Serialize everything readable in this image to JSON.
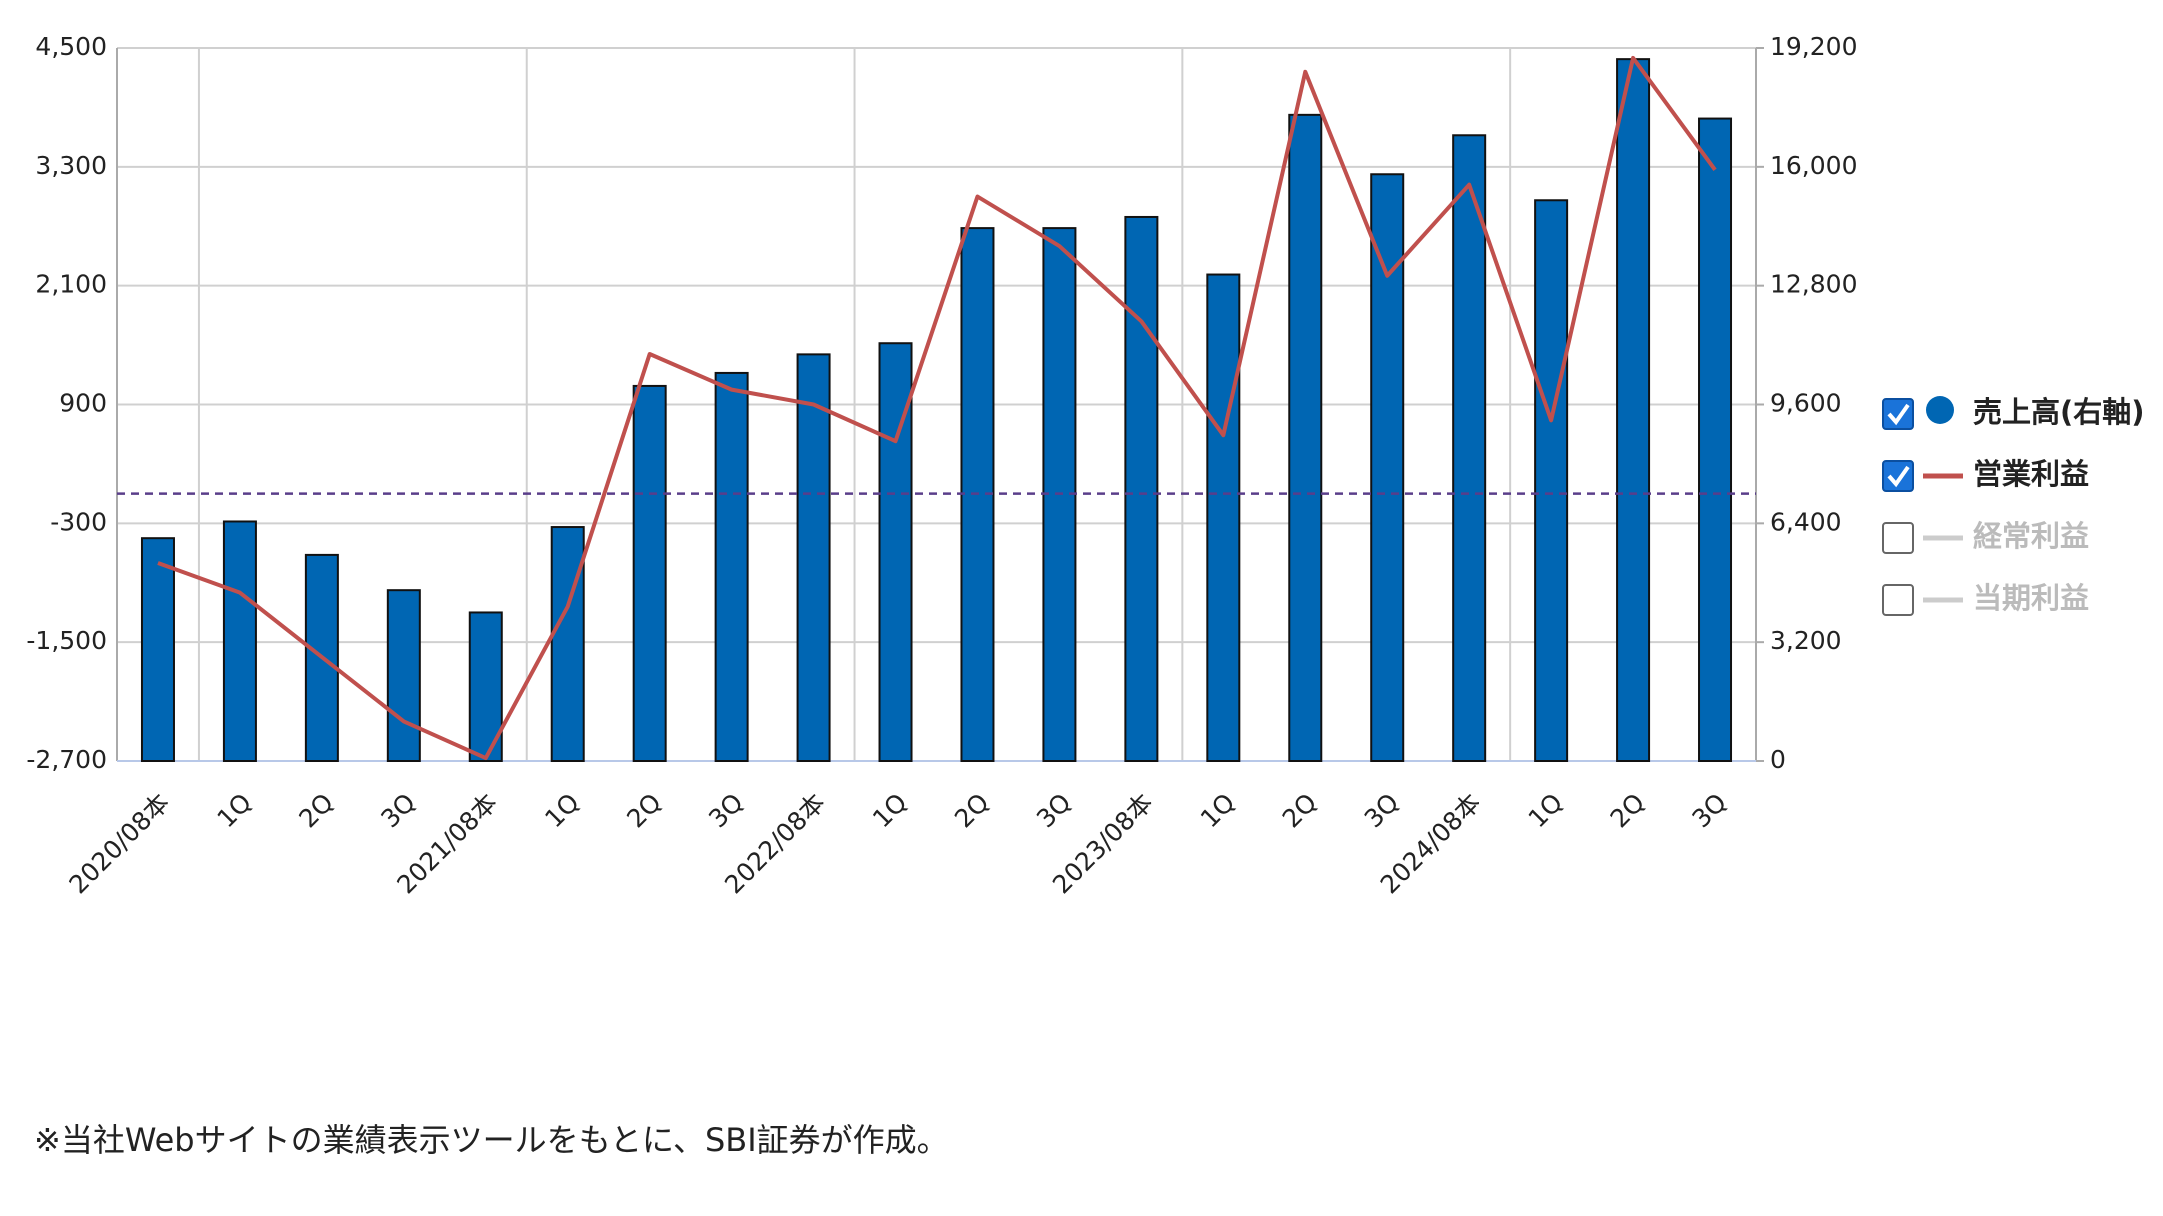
{
  "chart_data": {
    "type": "bar_line",
    "categories": [
      "2020/08本",
      "1Q",
      "2Q",
      "3Q",
      "2021/08本",
      "1Q",
      "2Q",
      "3Q",
      "2022/08本",
      "1Q",
      "2Q",
      "3Q",
      "2023/08本",
      "1Q",
      "2Q",
      "3Q",
      "2024/08本",
      "1Q",
      "2Q",
      "3Q"
    ],
    "series": [
      {
        "name": "売上高(右軸)",
        "type": "bar",
        "axis": "y2",
        "color": "#0066b3",
        "values": [
          6000,
          6450,
          5550,
          4600,
          4000,
          6300,
          10100,
          10450,
          10950,
          11250,
          14350,
          14350,
          14650,
          13100,
          17400,
          15800,
          16850,
          15100,
          18900,
          17300
        ]
      },
      {
        "name": "営業利益",
        "type": "line",
        "color": "#c0504d",
        "values": [
          -700,
          -1000,
          -1650,
          -2300,
          -2670,
          -1140,
          1410,
          1050,
          900,
          530,
          3000,
          2500,
          1740,
          590,
          4260,
          2200,
          3120,
          740,
          4400,
          3270
        ]
      }
    ],
    "hidden_series": [
      "経常利益",
      "当期利益"
    ],
    "ylim": [
      -2700,
      4500
    ],
    "yticks": [
      {
        "value": 4500,
        "label": "4,500"
      },
      {
        "value": 3300,
        "label": "3,300"
      },
      {
        "value": 2100,
        "label": "2,100"
      },
      900,
      -300,
      {
        "value": -1500,
        "label": "-1,500"
      },
      {
        "value": -2700,
        "label": "-2,700"
      }
    ],
    "y2lim": [
      0,
      19200
    ],
    "y2ticks": [
      {
        "value": 19200,
        "label": "19,200"
      },
      {
        "value": 16000,
        "label": "16,000"
      },
      {
        "value": 12800,
        "label": "12,800"
      },
      {
        "value": 9600,
        "label": "9,600"
      },
      {
        "value": 6400,
        "label": "6,400"
      },
      {
        "value": 3200,
        "label": "3,200"
      },
      0
    ],
    "ref_line": 0,
    "grid": true
  },
  "footnote": "※当社Webサイトの業績表示ツールをもとに、SBI証券が作成。"
}
